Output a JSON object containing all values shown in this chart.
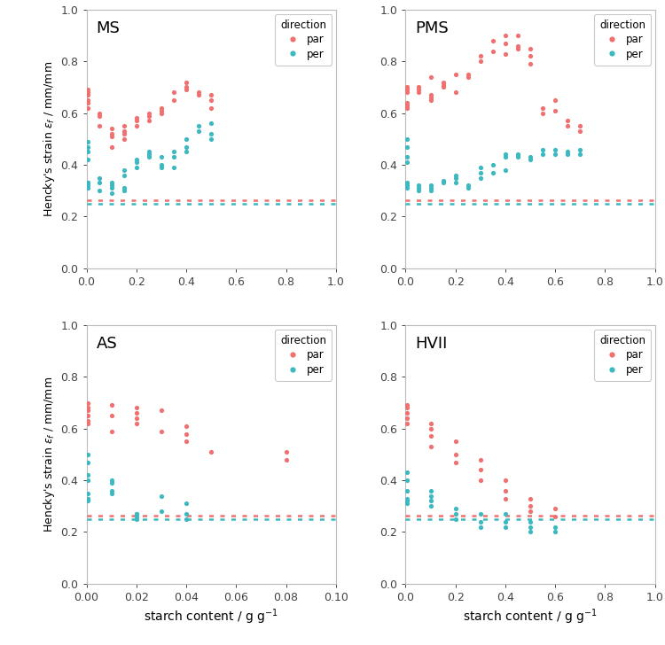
{
  "par_color": "#F07070",
  "per_color": "#3BB8C0",
  "ref_par": 0.263,
  "ref_per": 0.248,
  "MS": {
    "xlim": [
      0,
      1.0
    ],
    "xticks": [
      0.0,
      0.2,
      0.4,
      0.6,
      0.8,
      1.0
    ],
    "par_x": [
      0.005,
      0.005,
      0.005,
      0.005,
      0.005,
      0.005,
      0.05,
      0.05,
      0.05,
      0.1,
      0.1,
      0.1,
      0.1,
      0.15,
      0.15,
      0.15,
      0.15,
      0.2,
      0.2,
      0.2,
      0.25,
      0.25,
      0.25,
      0.3,
      0.3,
      0.3,
      0.35,
      0.35,
      0.4,
      0.4,
      0.4,
      0.45,
      0.45,
      0.5,
      0.5,
      0.5
    ],
    "par_y": [
      0.62,
      0.64,
      0.65,
      0.67,
      0.68,
      0.69,
      0.55,
      0.59,
      0.6,
      0.47,
      0.51,
      0.52,
      0.54,
      0.5,
      0.52,
      0.53,
      0.55,
      0.55,
      0.57,
      0.58,
      0.57,
      0.59,
      0.6,
      0.6,
      0.61,
      0.62,
      0.65,
      0.68,
      0.7,
      0.69,
      0.72,
      0.67,
      0.68,
      0.62,
      0.65,
      0.67
    ],
    "per_x": [
      0.005,
      0.005,
      0.005,
      0.005,
      0.005,
      0.005,
      0.005,
      0.005,
      0.05,
      0.05,
      0.05,
      0.1,
      0.1,
      0.1,
      0.1,
      0.15,
      0.15,
      0.15,
      0.15,
      0.2,
      0.2,
      0.2,
      0.25,
      0.25,
      0.25,
      0.3,
      0.3,
      0.3,
      0.35,
      0.35,
      0.35,
      0.4,
      0.4,
      0.4,
      0.45,
      0.45,
      0.5,
      0.5,
      0.5
    ],
    "per_y": [
      0.49,
      0.47,
      0.45,
      0.42,
      0.33,
      0.33,
      0.32,
      0.31,
      0.35,
      0.33,
      0.3,
      0.29,
      0.31,
      0.32,
      0.33,
      0.3,
      0.31,
      0.36,
      0.38,
      0.39,
      0.41,
      0.42,
      0.43,
      0.44,
      0.45,
      0.39,
      0.4,
      0.43,
      0.39,
      0.43,
      0.45,
      0.47,
      0.5,
      0.45,
      0.53,
      0.55,
      0.5,
      0.52,
      0.56
    ]
  },
  "PMS": {
    "xlim": [
      0,
      1.0
    ],
    "xticks": [
      0.0,
      0.2,
      0.4,
      0.6,
      0.8,
      1.0
    ],
    "par_x": [
      0.005,
      0.005,
      0.005,
      0.005,
      0.005,
      0.005,
      0.05,
      0.05,
      0.05,
      0.1,
      0.1,
      0.1,
      0.1,
      0.15,
      0.15,
      0.15,
      0.2,
      0.2,
      0.25,
      0.25,
      0.3,
      0.3,
      0.35,
      0.35,
      0.4,
      0.4,
      0.4,
      0.45,
      0.45,
      0.45,
      0.5,
      0.5,
      0.5,
      0.55,
      0.55,
      0.6,
      0.6,
      0.65,
      0.65,
      0.7,
      0.7
    ],
    "par_y": [
      0.62,
      0.63,
      0.64,
      0.68,
      0.69,
      0.7,
      0.68,
      0.7,
      0.69,
      0.65,
      0.66,
      0.67,
      0.74,
      0.7,
      0.71,
      0.72,
      0.68,
      0.75,
      0.74,
      0.75,
      0.8,
      0.82,
      0.84,
      0.88,
      0.83,
      0.87,
      0.9,
      0.85,
      0.86,
      0.9,
      0.79,
      0.82,
      0.85,
      0.6,
      0.62,
      0.61,
      0.65,
      0.55,
      0.57,
      0.53,
      0.55
    ],
    "per_x": [
      0.005,
      0.005,
      0.005,
      0.005,
      0.005,
      0.005,
      0.005,
      0.05,
      0.05,
      0.05,
      0.1,
      0.1,
      0.1,
      0.15,
      0.15,
      0.2,
      0.2,
      0.2,
      0.25,
      0.25,
      0.3,
      0.3,
      0.3,
      0.35,
      0.35,
      0.4,
      0.4,
      0.4,
      0.45,
      0.45,
      0.5,
      0.5,
      0.55,
      0.55,
      0.6,
      0.6,
      0.65,
      0.65,
      0.7,
      0.7
    ],
    "per_y": [
      0.5,
      0.47,
      0.43,
      0.41,
      0.33,
      0.32,
      0.31,
      0.3,
      0.31,
      0.32,
      0.3,
      0.31,
      0.32,
      0.33,
      0.34,
      0.33,
      0.35,
      0.36,
      0.31,
      0.32,
      0.35,
      0.37,
      0.39,
      0.37,
      0.4,
      0.38,
      0.43,
      0.44,
      0.43,
      0.44,
      0.42,
      0.43,
      0.44,
      0.46,
      0.44,
      0.46,
      0.44,
      0.45,
      0.44,
      0.46
    ]
  },
  "AS": {
    "xlim": [
      0,
      0.1
    ],
    "xticks": [
      0.0,
      0.02,
      0.04,
      0.06,
      0.08,
      0.1
    ],
    "par_x": [
      0.0005,
      0.0005,
      0.0005,
      0.0005,
      0.0005,
      0.0005,
      0.01,
      0.01,
      0.01,
      0.02,
      0.02,
      0.02,
      0.02,
      0.03,
      0.03,
      0.04,
      0.04,
      0.04,
      0.05,
      0.08,
      0.08
    ],
    "par_y": [
      0.62,
      0.63,
      0.65,
      0.67,
      0.68,
      0.7,
      0.59,
      0.65,
      0.69,
      0.62,
      0.64,
      0.66,
      0.68,
      0.59,
      0.67,
      0.55,
      0.58,
      0.61,
      0.51,
      0.48,
      0.51
    ],
    "per_x": [
      0.0005,
      0.0005,
      0.0005,
      0.0005,
      0.0005,
      0.0005,
      0.0005,
      0.0005,
      0.01,
      0.01,
      0.01,
      0.01,
      0.02,
      0.02,
      0.02,
      0.02,
      0.03,
      0.03,
      0.04,
      0.04,
      0.04
    ],
    "per_y": [
      0.5,
      0.47,
      0.42,
      0.4,
      0.35,
      0.33,
      0.33,
      0.32,
      0.4,
      0.39,
      0.36,
      0.35,
      0.27,
      0.27,
      0.26,
      0.25,
      0.28,
      0.34,
      0.25,
      0.27,
      0.31
    ]
  },
  "HVII": {
    "xlim": [
      0,
      1.0
    ],
    "xticks": [
      0.0,
      0.2,
      0.4,
      0.6,
      0.8,
      1.0
    ],
    "par_x": [
      0.005,
      0.005,
      0.005,
      0.005,
      0.005,
      0.1,
      0.1,
      0.1,
      0.1,
      0.2,
      0.2,
      0.2,
      0.3,
      0.3,
      0.3,
      0.4,
      0.4,
      0.4,
      0.5,
      0.5,
      0.5,
      0.6,
      0.6
    ],
    "par_y": [
      0.62,
      0.64,
      0.66,
      0.68,
      0.69,
      0.53,
      0.57,
      0.6,
      0.62,
      0.47,
      0.5,
      0.55,
      0.4,
      0.44,
      0.48,
      0.33,
      0.36,
      0.4,
      0.28,
      0.3,
      0.33,
      0.26,
      0.29
    ],
    "per_x": [
      0.005,
      0.005,
      0.005,
      0.005,
      0.005,
      0.005,
      0.1,
      0.1,
      0.1,
      0.1,
      0.2,
      0.2,
      0.2,
      0.3,
      0.3,
      0.3,
      0.4,
      0.4,
      0.4,
      0.5,
      0.5,
      0.5,
      0.6,
      0.6
    ],
    "per_y": [
      0.43,
      0.4,
      0.36,
      0.33,
      0.32,
      0.31,
      0.3,
      0.32,
      0.34,
      0.36,
      0.25,
      0.27,
      0.29,
      0.22,
      0.24,
      0.27,
      0.22,
      0.24,
      0.27,
      0.2,
      0.22,
      0.24,
      0.2,
      0.22
    ]
  }
}
